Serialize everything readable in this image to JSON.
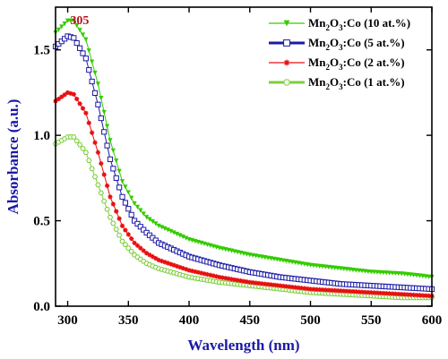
{
  "chart_data": {
    "type": "scatter",
    "xlabel": "Wavelength (nm)",
    "ylabel": "Absorbance (a.u.)",
    "xlim": [
      290,
      600
    ],
    "ylim": [
      0.0,
      1.75
    ],
    "x_ticks": [
      "300",
      "350",
      "400",
      "450",
      "500",
      "550",
      "600"
    ],
    "y_ticks": [
      "0.0",
      "0.5",
      "1.0",
      "1.5"
    ],
    "x_tick_values": [
      300,
      350,
      400,
      450,
      500,
      550,
      600
    ],
    "y_tick_values": [
      0.0,
      0.5,
      1.0,
      1.5
    ],
    "annotation": {
      "text": "305",
      "x": 305,
      "color": "#b5121b"
    },
    "legend_position": "top-right",
    "legend_label_parts": [
      [
        "Mn",
        "2",
        "O",
        "3",
        ":Co (10 at.%)"
      ],
      [
        "Mn",
        "2",
        "O",
        "3",
        ":Co (5 at.%)"
      ],
      [
        "Mn",
        "2",
        "O",
        "3",
        ":Co (2 at.%)"
      ],
      [
        "Mn",
        "2",
        "O",
        "3",
        ":Co (1 at.%)"
      ]
    ],
    "series": [
      {
        "name": "Mn2O3:Co (10 at.%)",
        "color": "#33cc00",
        "marker": "triangle-down",
        "x": [
          290,
          300,
          305,
          315,
          325,
          335,
          345,
          355,
          365,
          375,
          400,
          425,
          450,
          475,
          500,
          525,
          550,
          575,
          600
        ],
        "y": [
          1.6,
          1.67,
          1.67,
          1.56,
          1.3,
          0.97,
          0.73,
          0.6,
          0.52,
          0.47,
          0.39,
          0.34,
          0.3,
          0.27,
          0.24,
          0.22,
          0.2,
          0.19,
          0.17
        ]
      },
      {
        "name": "Mn2O3:Co (5 at.%)",
        "color": "#1a1aa6",
        "marker": "square-open",
        "x": [
          290,
          300,
          305,
          315,
          325,
          335,
          345,
          355,
          365,
          375,
          400,
          425,
          450,
          475,
          500,
          525,
          550,
          575,
          600
        ],
        "y": [
          1.52,
          1.58,
          1.57,
          1.45,
          1.18,
          0.86,
          0.64,
          0.5,
          0.43,
          0.37,
          0.29,
          0.24,
          0.2,
          0.17,
          0.15,
          0.13,
          0.12,
          0.11,
          0.1
        ]
      },
      {
        "name": "Mn2O3:Co (2 at.%)",
        "color": "#e81010",
        "marker": "star",
        "x": [
          290,
          300,
          305,
          315,
          325,
          335,
          345,
          355,
          365,
          375,
          400,
          425,
          450,
          475,
          500,
          525,
          550,
          575,
          600
        ],
        "y": [
          1.2,
          1.25,
          1.24,
          1.13,
          0.9,
          0.64,
          0.47,
          0.37,
          0.31,
          0.27,
          0.21,
          0.17,
          0.14,
          0.12,
          0.1,
          0.09,
          0.08,
          0.07,
          0.06
        ]
      },
      {
        "name": "Mn2O3:Co (1 at.%)",
        "color": "#7ccf3a",
        "marker": "hexagon-open",
        "x": [
          290,
          300,
          305,
          315,
          325,
          335,
          345,
          355,
          365,
          375,
          400,
          425,
          450,
          475,
          500,
          525,
          550,
          575,
          600
        ],
        "y": [
          0.95,
          0.99,
          0.99,
          0.9,
          0.71,
          0.52,
          0.38,
          0.3,
          0.25,
          0.22,
          0.17,
          0.14,
          0.12,
          0.1,
          0.08,
          0.07,
          0.06,
          0.05,
          0.05
        ]
      }
    ]
  }
}
